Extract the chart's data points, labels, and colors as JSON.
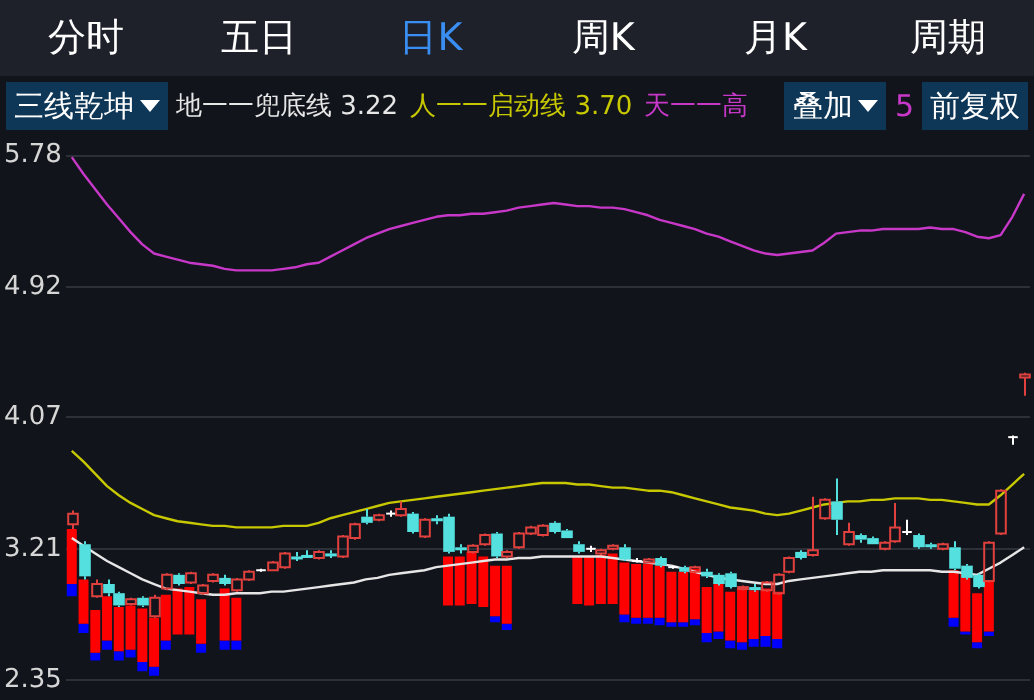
{
  "chart_data": {
    "type": "candlestick",
    "legend": "top",
    "grid": "y",
    "tick_labels": "y",
    "annotations": [
      "分时",
      "五日",
      "日K",
      "周K",
      "月K",
      "周期",
      "三线乾坤",
      "3.22",
      "3.70",
      "叠加",
      "5",
      "前复权"
    ],
    "categories": [
      null,
      null,
      null,
      null,
      null,
      null,
      null,
      null,
      null,
      null,
      null,
      null,
      null,
      null,
      null,
      null,
      null,
      null,
      null,
      null,
      null,
      null,
      null,
      null,
      null,
      null,
      null,
      null,
      null,
      null,
      null,
      null,
      null,
      null,
      null,
      null,
      null,
      null,
      null,
      null,
      null,
      null,
      null,
      null,
      null,
      null,
      null,
      null,
      null,
      null,
      null,
      null,
      null,
      null,
      null,
      null,
      null,
      null,
      null,
      null,
      null,
      null,
      null,
      null,
      null,
      null,
      null,
      null,
      null,
      null,
      null,
      null,
      null,
      null,
      null,
      null,
      null,
      null,
      null,
      null,
      null,
      null
    ],
    "ylim": [
      2.35,
      5.78
    ],
    "yticks": [
      2.35,
      3.21,
      4.07,
      4.92,
      5.78
    ],
    "ohlc": [
      [
        3.37,
        3.46,
        3.34,
        3.44
      ],
      [
        3.24,
        3.26,
        3.01,
        3.03
      ],
      [
        2.9,
        3.01,
        2.89,
        2.98
      ],
      [
        2.98,
        3.01,
        2.9,
        2.92
      ],
      [
        2.92,
        2.93,
        2.83,
        2.84
      ],
      [
        2.85,
        2.89,
        2.84,
        2.88
      ],
      [
        2.89,
        2.9,
        2.83,
        2.84
      ],
      [
        2.77,
        2.91,
        2.76,
        2.89
      ],
      [
        2.95,
        3.05,
        2.94,
        3.04
      ],
      [
        3.04,
        3.05,
        2.97,
        2.98
      ],
      [
        2.99,
        3.06,
        2.98,
        3.05
      ],
      [
        2.92,
        2.98,
        2.91,
        2.97
      ],
      [
        3.0,
        3.05,
        2.99,
        3.04
      ],
      [
        3.02,
        3.04,
        2.97,
        2.98
      ],
      [
        2.94,
        3.02,
        2.93,
        3.01
      ],
      [
        3.01,
        3.07,
        3.0,
        3.06
      ],
      [
        3.07,
        3.08,
        3.06,
        3.07
      ],
      [
        3.07,
        3.13,
        3.07,
        3.12
      ],
      [
        3.09,
        3.19,
        3.08,
        3.18
      ],
      [
        3.16,
        3.19,
        3.13,
        3.15
      ],
      [
        3.17,
        3.2,
        3.15,
        3.16
      ],
      [
        3.15,
        3.2,
        3.14,
        3.19
      ],
      [
        3.18,
        3.2,
        3.15,
        3.17
      ],
      [
        3.16,
        3.3,
        3.15,
        3.29
      ],
      [
        3.28,
        3.38,
        3.27,
        3.37
      ],
      [
        3.42,
        3.47,
        3.37,
        3.38
      ],
      [
        3.4,
        3.44,
        3.39,
        3.43
      ],
      [
        3.44,
        3.46,
        3.42,
        3.44
      ],
      [
        3.43,
        3.52,
        3.42,
        3.47
      ],
      [
        3.44,
        3.45,
        3.31,
        3.32
      ],
      [
        3.29,
        3.41,
        3.28,
        3.4
      ],
      [
        3.41,
        3.43,
        3.37,
        3.39
      ],
      [
        3.42,
        3.44,
        3.18,
        3.19
      ],
      [
        3.22,
        3.24,
        3.18,
        3.21
      ],
      [
        3.19,
        3.24,
        3.18,
        3.23
      ],
      [
        3.24,
        3.31,
        3.23,
        3.3
      ],
      [
        3.31,
        3.32,
        3.15,
        3.16
      ],
      [
        3.16,
        3.2,
        3.15,
        3.19
      ],
      [
        3.22,
        3.32,
        3.21,
        3.31
      ],
      [
        3.31,
        3.36,
        3.3,
        3.35
      ],
      [
        3.3,
        3.37,
        3.29,
        3.36
      ],
      [
        3.38,
        3.39,
        3.31,
        3.32
      ],
      [
        3.33,
        3.34,
        3.28,
        3.28
      ],
      [
        3.24,
        3.26,
        3.18,
        3.19
      ],
      [
        3.21,
        3.23,
        3.19,
        3.21
      ],
      [
        3.18,
        3.21,
        3.17,
        3.2
      ],
      [
        3.21,
        3.24,
        3.2,
        3.23
      ],
      [
        3.22,
        3.24,
        3.13,
        3.14
      ],
      [
        3.13,
        3.15,
        3.12,
        3.13
      ],
      [
        3.12,
        3.15,
        3.12,
        3.14
      ],
      [
        3.15,
        3.16,
        3.09,
        3.1
      ],
      [
        3.09,
        3.1,
        3.08,
        3.09
      ],
      [
        3.09,
        3.1,
        3.05,
        3.06
      ],
      [
        3.06,
        3.1,
        3.05,
        3.09
      ],
      [
        3.06,
        3.08,
        3.02,
        3.03
      ],
      [
        3.04,
        3.05,
        2.97,
        2.98
      ],
      [
        3.05,
        3.06,
        2.95,
        2.96
      ],
      [
        2.95,
        2.97,
        2.94,
        2.96
      ],
      [
        2.96,
        2.98,
        2.93,
        2.94
      ],
      [
        2.94,
        3.0,
        2.93,
        2.99
      ],
      [
        2.92,
        3.05,
        2.91,
        3.04
      ],
      [
        3.06,
        3.16,
        3.05,
        3.15
      ],
      [
        3.19,
        3.2,
        3.14,
        3.15
      ],
      [
        3.17,
        3.55,
        3.16,
        3.2
      ],
      [
        3.41,
        3.54,
        3.4,
        3.53
      ],
      [
        3.52,
        3.67,
        3.3,
        3.4
      ],
      [
        3.24,
        3.38,
        3.23,
        3.32
      ],
      [
        3.3,
        3.31,
        3.25,
        3.27
      ],
      [
        3.28,
        3.29,
        3.24,
        3.24
      ],
      [
        3.21,
        3.26,
        3.2,
        3.25
      ],
      [
        3.26,
        3.51,
        3.25,
        3.35
      ],
      [
        3.32,
        3.4,
        3.3,
        3.32
      ],
      [
        3.3,
        3.31,
        3.21,
        3.22
      ],
      [
        3.24,
        3.25,
        3.21,
        3.22
      ],
      [
        3.21,
        3.25,
        3.2,
        3.24
      ],
      [
        3.22,
        3.26,
        3.07,
        3.08
      ],
      [
        3.1,
        3.11,
        3.01,
        3.02
      ],
      [
        3.04,
        3.05,
        2.95,
        2.96
      ],
      [
        3.0,
        3.26,
        2.99,
        3.25
      ],
      [
        3.31,
        3.6,
        3.3,
        3.59
      ],
      [
        3.94,
        3.95,
        3.89,
        3.94
      ],
      [
        4.33,
        4.36,
        4.21,
        4.35
      ]
    ],
    "colors": [
      "#e0403e",
      "#55e0e0",
      "#e0403e",
      "#55e0e0",
      "#55e0e0",
      "#e0403e",
      "#55e0e0",
      "#e0403e",
      "#e0403e",
      "#55e0e0",
      "#e0403e",
      "#e0403e",
      "#e0403e",
      "#55e0e0",
      "#e0403e",
      "#e0403e",
      "#ffffff",
      "#e0403e",
      "#e0403e",
      "#55e0e0",
      "#55e0e0",
      "#e0403e",
      "#55e0e0",
      "#e0403e",
      "#e0403e",
      "#55e0e0",
      "#e0403e",
      "#ffffff",
      "#e0403e",
      "#55e0e0",
      "#e0403e",
      "#55e0e0",
      "#55e0e0",
      "#55e0e0",
      "#e0403e",
      "#e0403e",
      "#55e0e0",
      "#e0403e",
      "#e0403e",
      "#e0403e",
      "#e0403e",
      "#55e0e0",
      "#55e0e0",
      "#55e0e0",
      "#ffffff",
      "#e0403e",
      "#e0403e",
      "#55e0e0",
      "#ffffff",
      "#e0403e",
      "#55e0e0",
      "#ffffff",
      "#55e0e0",
      "#e0403e",
      "#55e0e0",
      "#55e0e0",
      "#55e0e0",
      "#e0403e",
      "#55e0e0",
      "#e0403e",
      "#e0403e",
      "#e0403e",
      "#55e0e0",
      "#e0403e",
      "#e0403e",
      "#55e0e0",
      "#e0403e",
      "#55e0e0",
      "#55e0e0",
      "#e0403e",
      "#e0403e",
      "#ffffff",
      "#55e0e0",
      "#55e0e0",
      "#e0403e",
      "#55e0e0",
      "#55e0e0",
      "#55e0e0",
      "#e0403e",
      "#e0403e",
      "#ffffff",
      "#e0403e"
    ],
    "series": [
      {
        "name": "地一一兜底线",
        "type": "line",
        "color": "#e6e6e6",
        "values": [
          3.28,
          3.23,
          3.18,
          3.13,
          3.09,
          3.05,
          3.01,
          2.98,
          2.95,
          2.94,
          2.93,
          2.92,
          2.91,
          2.91,
          2.92,
          2.92,
          2.92,
          2.93,
          2.93,
          2.94,
          2.95,
          2.96,
          2.97,
          2.98,
          2.99,
          3.01,
          3.02,
          3.04,
          3.05,
          3.06,
          3.07,
          3.09,
          3.1,
          3.11,
          3.12,
          3.13,
          3.14,
          3.14,
          3.15,
          3.15,
          3.16,
          3.16,
          3.16,
          3.16,
          3.16,
          3.16,
          3.15,
          3.14,
          3.13,
          3.12,
          3.11,
          3.1,
          3.08,
          3.06,
          3.04,
          3.02,
          3.01,
          3.0,
          2.99,
          2.98,
          2.98,
          3.0,
          3.01,
          3.02,
          3.03,
          3.04,
          3.05,
          3.06,
          3.06,
          3.07,
          3.07,
          3.07,
          3.07,
          3.07,
          3.06,
          3.06,
          3.05,
          3.04,
          3.08,
          3.12,
          3.17,
          3.22
        ]
      },
      {
        "name": "人一一启动线",
        "type": "line",
        "color": "#c8c800",
        "values": [
          3.85,
          3.78,
          3.7,
          3.62,
          3.56,
          3.51,
          3.47,
          3.43,
          3.41,
          3.39,
          3.38,
          3.37,
          3.36,
          3.36,
          3.35,
          3.35,
          3.35,
          3.35,
          3.36,
          3.36,
          3.36,
          3.38,
          3.41,
          3.43,
          3.45,
          3.47,
          3.49,
          3.51,
          3.52,
          3.53,
          3.54,
          3.55,
          3.56,
          3.57,
          3.58,
          3.59,
          3.6,
          3.61,
          3.62,
          3.63,
          3.64,
          3.64,
          3.64,
          3.63,
          3.63,
          3.62,
          3.61,
          3.61,
          3.6,
          3.59,
          3.59,
          3.58,
          3.56,
          3.54,
          3.52,
          3.5,
          3.48,
          3.47,
          3.46,
          3.44,
          3.43,
          3.44,
          3.46,
          3.48,
          3.5,
          3.51,
          3.52,
          3.52,
          3.53,
          3.53,
          3.54,
          3.54,
          3.54,
          3.53,
          3.53,
          3.52,
          3.51,
          3.5,
          3.5,
          3.56,
          3.63,
          3.7
        ]
      },
      {
        "name": "天一一高",
        "type": "line",
        "color": "#c838c8",
        "values": [
          5.77,
          5.66,
          5.56,
          5.46,
          5.37,
          5.28,
          5.2,
          5.14,
          5.12,
          5.1,
          5.08,
          5.07,
          5.06,
          5.04,
          5.03,
          5.03,
          5.03,
          5.03,
          5.04,
          5.05,
          5.07,
          5.08,
          5.12,
          5.16,
          5.2,
          5.24,
          5.27,
          5.3,
          5.32,
          5.34,
          5.36,
          5.38,
          5.39,
          5.39,
          5.4,
          5.4,
          5.41,
          5.42,
          5.44,
          5.45,
          5.46,
          5.47,
          5.46,
          5.45,
          5.45,
          5.44,
          5.44,
          5.43,
          5.41,
          5.39,
          5.36,
          5.34,
          5.32,
          5.3,
          5.27,
          5.25,
          5.22,
          5.19,
          5.16,
          5.14,
          5.13,
          5.14,
          5.15,
          5.16,
          5.21,
          5.27,
          5.28,
          5.29,
          5.29,
          5.3,
          5.3,
          5.3,
          5.3,
          5.31,
          5.3,
          5.3,
          5.28,
          5.25,
          5.24,
          5.26,
          5.38,
          5.53
        ]
      },
      {
        "type": "bar",
        "color": "#ff0000",
        "base": [
          2.98,
          2.72,
          2.53,
          2.61,
          2.54,
          2.55,
          2.47,
          2.44,
          2.61,
          2.65,
          2.65,
          2.59,
          null,
          2.61,
          2.61,
          null,
          null,
          null,
          null,
          null,
          null,
          null,
          null,
          null,
          null,
          null,
          null,
          null,
          null,
          null,
          null,
          null,
          2.84,
          2.84,
          2.85,
          2.83,
          2.77,
          2.72,
          null,
          null,
          null,
          null,
          null,
          2.85,
          2.84,
          2.85,
          2.85,
          2.78,
          2.76,
          2.76,
          2.76,
          2.73,
          2.73,
          2.75,
          2.66,
          2.67,
          2.61,
          2.6,
          2.62,
          2.64,
          2.62,
          null,
          null,
          null,
          null,
          null,
          null,
          null,
          null,
          null,
          null,
          null,
          null,
          null,
          null,
          2.76,
          2.67,
          2.6,
          2.67,
          null,
          null,
          null
        ],
        "values": [
          0.36,
          0.29,
          0.28,
          0.29,
          0.29,
          0.29,
          0.35,
          0.32,
          0.3,
          0.3,
          0.31,
          0.29,
          null,
          0.34,
          0.28,
          null,
          null,
          null,
          null,
          null,
          null,
          null,
          null,
          null,
          null,
          null,
          null,
          null,
          null,
          null,
          null,
          null,
          0.32,
          0.32,
          0.34,
          0.33,
          0.33,
          0.38,
          null,
          null,
          null,
          null,
          null,
          0.31,
          0.32,
          0.32,
          0.33,
          0.34,
          0.35,
          0.35,
          0.34,
          0.33,
          0.33,
          0.33,
          0.3,
          0.31,
          0.32,
          0.35,
          0.32,
          0.31,
          0.31,
          null,
          null,
          null,
          null,
          null,
          null,
          null,
          null,
          null,
          null,
          null,
          null,
          null,
          null,
          0.31,
          0.39,
          0.32,
          0.33,
          null,
          null,
          null
        ]
      },
      {
        "type": "bar",
        "color": "#0000ff",
        "base": [
          2.9,
          2.66,
          2.48,
          2.55,
          2.48,
          2.5,
          2.41,
          2.38,
          2.55,
          null,
          null,
          2.53,
          null,
          2.55,
          2.55,
          null,
          null,
          null,
          null,
          null,
          null,
          null,
          null,
          null,
          null,
          null,
          null,
          null,
          null,
          null,
          null,
          null,
          null,
          null,
          null,
          null,
          2.73,
          2.68,
          null,
          null,
          null,
          null,
          null,
          null,
          null,
          null,
          null,
          2.73,
          2.72,
          2.72,
          2.71,
          2.7,
          2.7,
          2.71,
          2.6,
          2.62,
          2.56,
          2.55,
          2.57,
          2.57,
          2.56,
          null,
          null,
          null,
          null,
          null,
          null,
          null,
          null,
          null,
          null,
          null,
          null,
          null,
          null,
          2.7,
          2.65,
          2.56,
          2.64,
          null,
          null,
          null
        ],
        "values": [
          0.08,
          0.06,
          0.05,
          0.06,
          0.06,
          0.05,
          0.06,
          0.06,
          0.06,
          null,
          null,
          0.06,
          null,
          0.06,
          0.06,
          null,
          null,
          null,
          null,
          null,
          null,
          null,
          null,
          null,
          null,
          null,
          null,
          null,
          null,
          null,
          null,
          null,
          null,
          null,
          null,
          null,
          0.04,
          0.04,
          null,
          null,
          null,
          null,
          null,
          null,
          null,
          null,
          null,
          0.05,
          0.04,
          0.04,
          0.05,
          0.03,
          0.03,
          0.04,
          0.06,
          0.05,
          0.05,
          0.05,
          0.05,
          0.07,
          0.06,
          null,
          null,
          null,
          null,
          null,
          null,
          null,
          null,
          null,
          null,
          null,
          null,
          null,
          null,
          0.06,
          0.02,
          0.04,
          0.03,
          null,
          null,
          null
        ]
      }
    ]
  }
}
